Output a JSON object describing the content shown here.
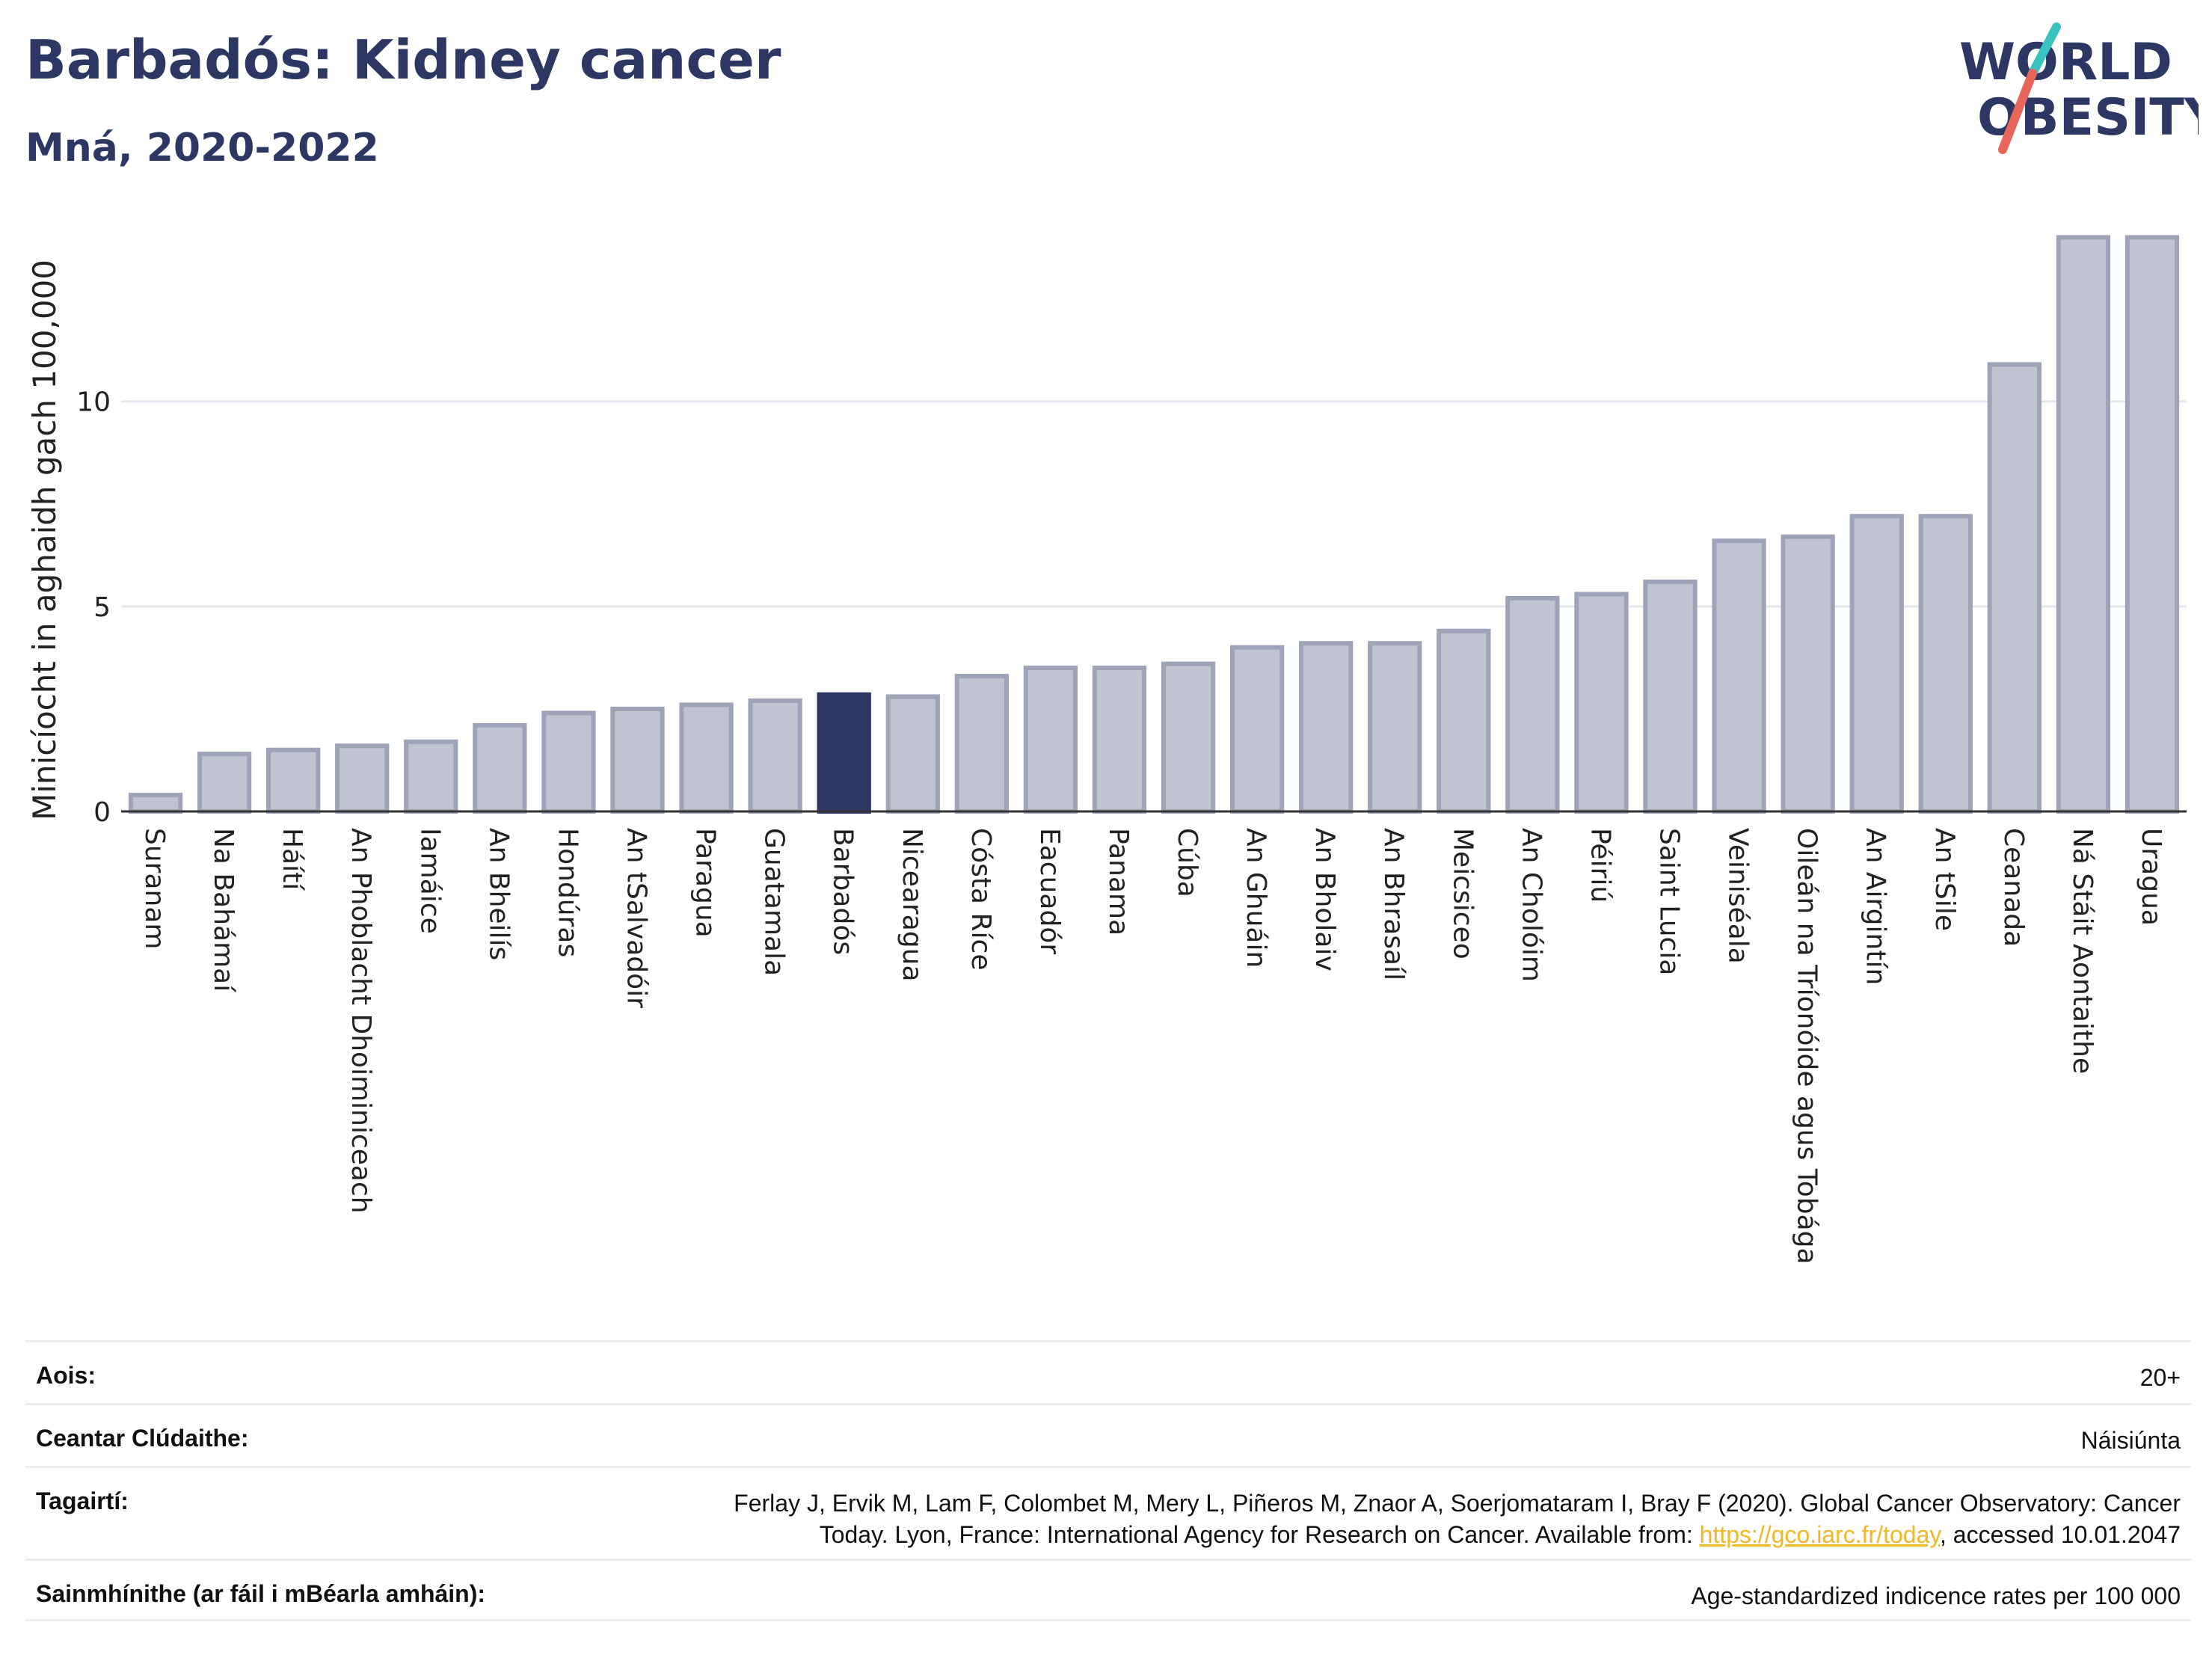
{
  "header": {
    "title": "Barbadós: Kidney cancer",
    "subtitle": "Mná, 2020-2022"
  },
  "logo": {
    "line1": "WORLD",
    "line2": "OBESITY",
    "colors": {
      "text": "#2c3863",
      "slash_red": "#e8655a",
      "slash_teal": "#39c2be"
    }
  },
  "colors": {
    "bar": "#c0c3d0",
    "bar_border": "#9ea3b8",
    "highlight": "#2c3863",
    "grid": "#e6e6ee",
    "axis": "#333333"
  },
  "chart_data": {
    "type": "bar",
    "categories": [
      "Suranam",
      "Na Bahámaí",
      "Háítí",
      "An Phoblacht Dhoiminiceach",
      "Iamáice",
      "An Bheilís",
      "Hondúras",
      "An tSalvadóir",
      "Paragua",
      "Guatamala",
      "Barbadós",
      "Nicearagua",
      "Cósta Ríce",
      "Eacuadór",
      "Panama",
      "Cúba",
      "An Ghuáin",
      "An Bholaiv",
      "An Bhrasaíl",
      "Meicsiceo",
      "An Cholóim",
      "Péiriú",
      "Saint Lucia",
      "Veiniséala",
      "Oileán na Tríonóide agus Tobága",
      "An Airgintín",
      "An tSile",
      "Ceanada",
      "Ná Stáit Aontaithe",
      "Uragua"
    ],
    "values": [
      0.4,
      1.4,
      1.5,
      1.6,
      1.7,
      2.1,
      2.4,
      2.5,
      2.6,
      2.7,
      2.85,
      2.8,
      3.3,
      3.5,
      3.5,
      3.6,
      4.0,
      4.1,
      4.1,
      4.4,
      5.2,
      5.3,
      5.6,
      6.6,
      6.7,
      7.2,
      7.2,
      10.9,
      14.0,
      14.0
    ],
    "highlight": "Barbadós",
    "ylabel": "Minicíocht in aghaidh gach 100,000",
    "xlabel": "",
    "ylim": [
      0,
      14.5
    ],
    "yticks": [
      0,
      5,
      10
    ],
    "grid": true
  },
  "info": [
    {
      "label": "Aois:",
      "value": "20+"
    },
    {
      "label": "Ceantar Clúdaithe:",
      "value": "Náisiúnta"
    },
    {
      "label": "Tagairtí:",
      "value_line1": "Ferlay J, Ervik M, Lam F, Colombet M, Mery L, Piñeros M, Znaor A, Soerjomataram I, Bray F (2020). Global Cancer Observatory: Cancer",
      "value_pre": "Today. Lyon, France: International Agency for Research on Cancer. Available from: ",
      "link": "https://gco.iarc.fr/today",
      "value_post": ", accessed 10.01.2047"
    },
    {
      "label": "Sainmhínithe (ar fáil i mBéarla amháin):",
      "value": "Age-standardized indicence rates per 100 000"
    }
  ]
}
